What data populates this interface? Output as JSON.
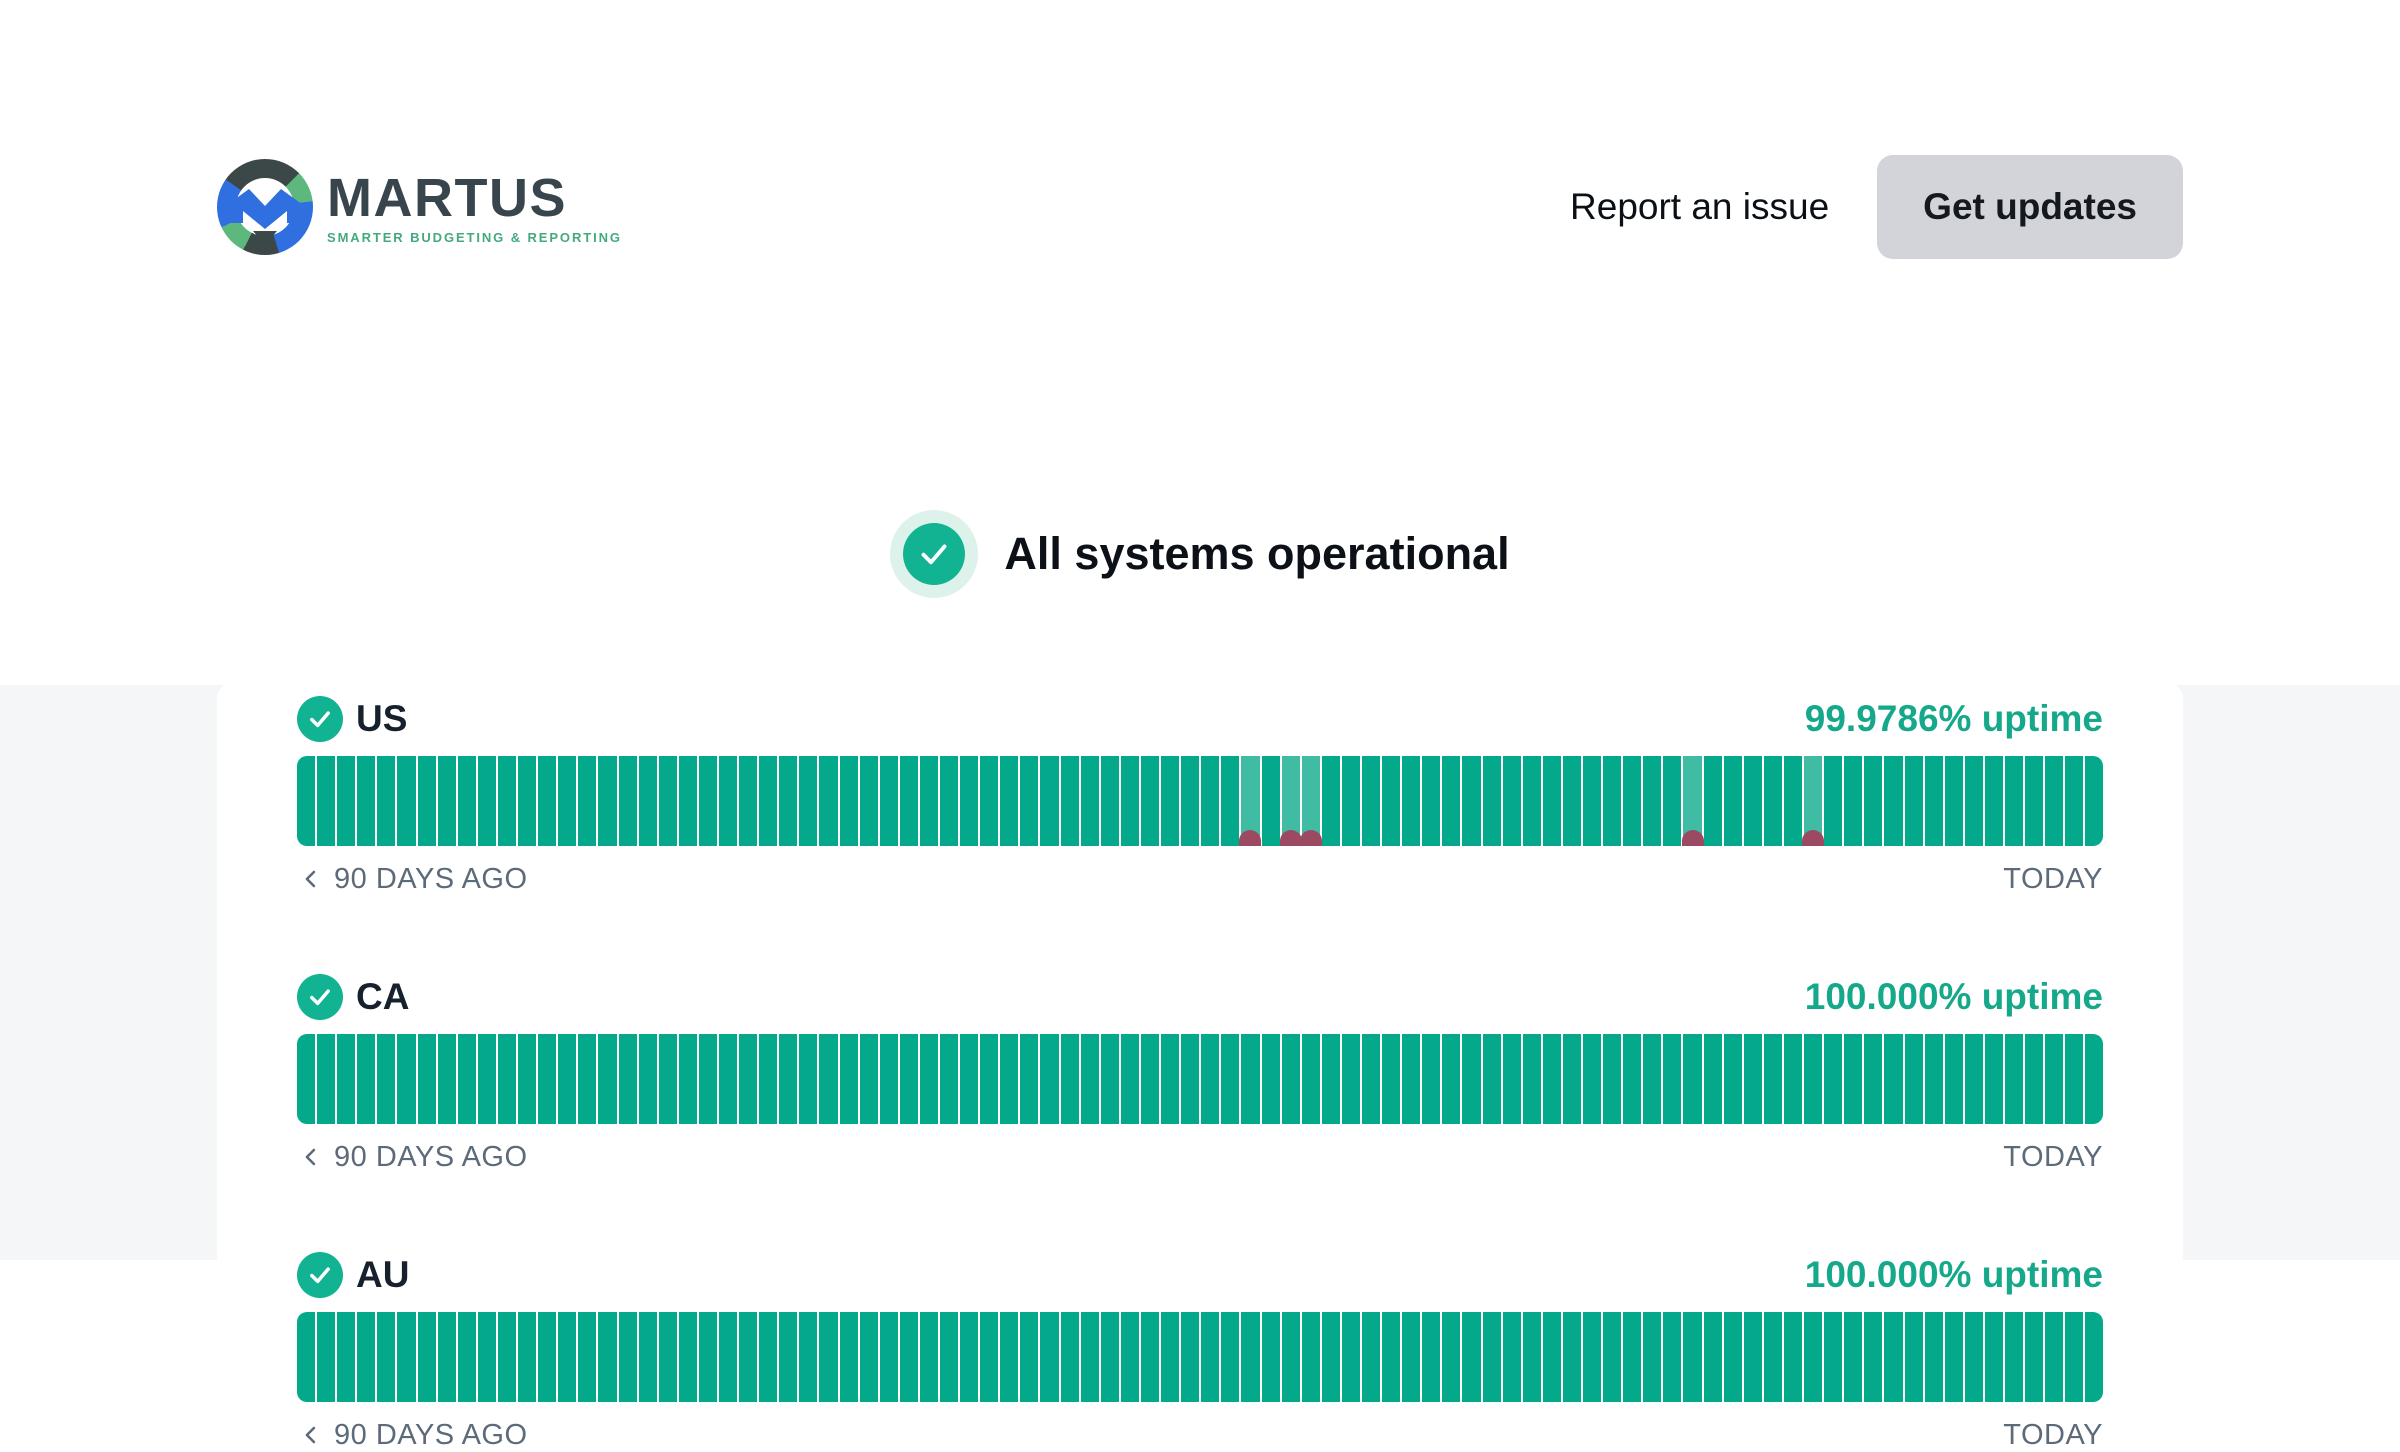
{
  "header": {
    "brand": {
      "name": "MARTUS",
      "tagline": "SMARTER BUDGETING & REPORTING"
    },
    "nav": {
      "report_issue_label": "Report an issue",
      "get_updates_label": "Get updates"
    }
  },
  "hero": {
    "status_message": "All systems operational"
  },
  "services": [
    {
      "name": "US",
      "uptime_label": "99.9786% uptime",
      "total_days": 90,
      "degraded_day_indices": [
        47,
        49,
        50,
        69,
        75
      ],
      "timeline": {
        "start_label": "90 DAYS AGO",
        "end_label": "TODAY"
      }
    },
    {
      "name": "CA",
      "uptime_label": "100.000% uptime",
      "total_days": 90,
      "degraded_day_indices": [],
      "timeline": {
        "start_label": "90 DAYS AGO",
        "end_label": "TODAY"
      }
    },
    {
      "name": "AU",
      "uptime_label": "100.000% uptime",
      "total_days": 90,
      "degraded_day_indices": [],
      "timeline": {
        "start_label": "90 DAYS AGO",
        "end_label": "TODAY"
      }
    }
  ],
  "colors": {
    "bar_operational": "#04a88b",
    "bar_degraded": "#40bca5",
    "incident_dot": "#9b4a62",
    "uptime_text": "#16a88a",
    "check_badge": "#12b392",
    "hero_halo": "#def2ec",
    "page_lower_background": "#f5f6f8",
    "get_updates_button_bg": "#d3d4d9",
    "logo_dark": "#3c4747",
    "logo_green": "#5cb87c",
    "logo_blue": "#2f6fe0"
  }
}
